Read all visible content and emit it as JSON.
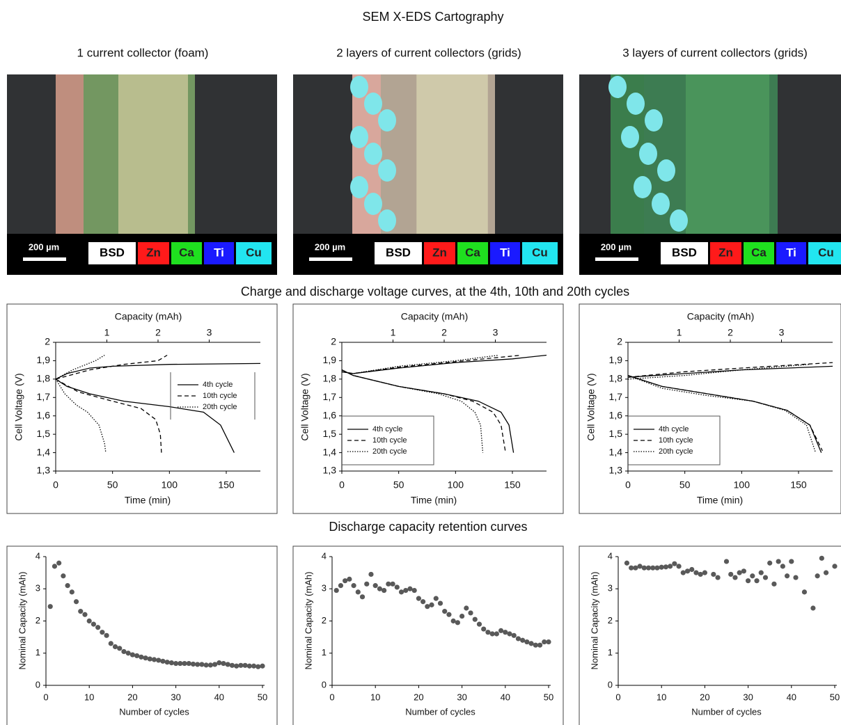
{
  "title": "SEM X-EDS Cartography",
  "sem_panels": [
    {
      "title": "1 current collector (foam)",
      "scale_bar": "200 µm",
      "channels": [
        "BSD",
        "Zn",
        "Ca",
        "Ti",
        "Cu"
      ]
    },
    {
      "title": "2  layers of current collectors (grids)",
      "scale_bar": "200 µm",
      "channels": [
        "BSD",
        "Zn",
        "Ca",
        "Ti",
        "Cu"
      ]
    },
    {
      "title": "3 layers of current collectors (grids)",
      "scale_bar": "200 µm",
      "channels": [
        "BSD",
        "Zn",
        "Ca",
        "Ti",
        "Cu"
      ]
    }
  ],
  "voltage_section_title": "Charge and discharge voltage curves, at the 4th, 10th and 20th cycles",
  "retention_section_title": "Discharge capacity retention curves",
  "chart_data": [
    {
      "type": "line",
      "xlabel": "Time (min)",
      "ylabel": "Cell Voltage (V)",
      "x2label": "Capacity (mAh)",
      "xlim": [
        0,
        180
      ],
      "xticks": [
        0,
        50,
        100,
        150
      ],
      "x2lim": [
        0,
        4
      ],
      "x2ticks": [
        1,
        2,
        3
      ],
      "ylim": [
        1.3,
        2
      ],
      "yticks": [
        {
          "value": 1.3,
          "label": "1,3"
        },
        {
          "value": 1.4,
          "label": "1,4"
        },
        {
          "value": 1.5,
          "label": "1,5"
        },
        {
          "value": 1.6,
          "label": "1,6"
        },
        {
          "value": 1.7,
          "label": "1,7"
        },
        {
          "value": 1.8,
          "label": "1,8"
        },
        {
          "value": 1.9,
          "label": "1,9"
        },
        2
      ],
      "legend": "right",
      "series": [
        {
          "name": "4th cycle",
          "color": "#000000",
          "dash": "solid",
          "charge": {
            "x": [
              0,
              10,
              30,
              50,
              100,
              180
            ],
            "values": [
              1.8,
              1.83,
              1.86,
              1.87,
              1.88,
              1.885
            ]
          },
          "discharge": {
            "x": [
              0,
              10,
              30,
              60,
              100,
              130,
              145,
              157
            ],
            "values": [
              1.8,
              1.76,
              1.72,
              1.68,
              1.65,
              1.62,
              1.55,
              1.4
            ]
          }
        },
        {
          "name": "10th cycle",
          "color": "#000000",
          "dash": "dashed",
          "charge": {
            "x": [
              0,
              30,
              60,
              90,
              98
            ],
            "values": [
              1.8,
              1.85,
              1.88,
              1.9,
              1.93
            ]
          },
          "discharge": {
            "x": [
              0,
              20,
              50,
              75,
              88,
              92,
              93
            ],
            "values": [
              1.8,
              1.73,
              1.68,
              1.64,
              1.58,
              1.5,
              1.4
            ]
          }
        },
        {
          "name": "20th cycle",
          "color": "#000000",
          "dash": "dotted",
          "charge": {
            "x": [
              0,
              15,
              35,
              43
            ],
            "values": [
              1.8,
              1.85,
              1.9,
              1.93
            ]
          },
          "discharge": {
            "x": [
              0,
              8,
              18,
              28,
              38,
              43,
              44
            ],
            "values": [
              1.8,
              1.72,
              1.66,
              1.62,
              1.55,
              1.45,
              1.4
            ]
          }
        }
      ]
    },
    {
      "type": "line",
      "xlabel": "Time (min)",
      "ylabel": "Cell Voltage (V)",
      "x2label": "Capacity (mAh)",
      "xlim": [
        0,
        180
      ],
      "xticks": [
        0,
        50,
        100,
        150
      ],
      "x2lim": [
        0,
        4
      ],
      "x2ticks": [
        1,
        2,
        3
      ],
      "ylim": [
        1.3,
        2
      ],
      "yticks": [
        {
          "value": 1.3,
          "label": "1,3"
        },
        {
          "value": 1.4,
          "label": "1,4"
        },
        {
          "value": 1.5,
          "label": "1,5"
        },
        {
          "value": 1.6,
          "label": "1,6"
        },
        {
          "value": 1.7,
          "label": "1,7"
        },
        {
          "value": 1.8,
          "label": "1,8"
        },
        {
          "value": 1.9,
          "label": "1,9"
        },
        2
      ],
      "legend": "lower left",
      "series": [
        {
          "name": "4th cycle",
          "color": "#000000",
          "dash": "solid",
          "charge": {
            "x": [
              0,
              10,
              50,
              100,
              150,
              180
            ],
            "values": [
              1.84,
              1.83,
              1.86,
              1.89,
              1.91,
              1.93
            ]
          },
          "discharge": {
            "x": [
              0,
              10,
              50,
              90,
              120,
              140,
              147,
              151
            ],
            "values": [
              1.85,
              1.82,
              1.76,
              1.72,
              1.68,
              1.62,
              1.55,
              1.4
            ]
          }
        },
        {
          "name": "10th cycle",
          "color": "#000000",
          "dash": "dashed",
          "charge": {
            "x": [
              0,
              10,
              50,
              100,
              158
            ],
            "values": [
              1.84,
              1.83,
              1.865,
              1.895,
              1.93
            ]
          },
          "discharge": {
            "x": [
              0,
              10,
              50,
              90,
              115,
              133,
              140,
              144
            ],
            "values": [
              1.85,
              1.82,
              1.76,
              1.72,
              1.68,
              1.62,
              1.55,
              1.4
            ]
          }
        },
        {
          "name": "20th cycle",
          "color": "#000000",
          "dash": "dotted",
          "charge": {
            "x": [
              0,
              10,
              50,
              100,
              138
            ],
            "values": [
              1.84,
              1.83,
              1.87,
              1.9,
              1.93
            ]
          },
          "discharge": {
            "x": [
              0,
              10,
              50,
              85,
              105,
              117,
              122,
              124
            ],
            "values": [
              1.85,
              1.82,
              1.76,
              1.72,
              1.68,
              1.62,
              1.55,
              1.4
            ]
          }
        }
      ]
    },
    {
      "type": "line",
      "xlabel": "Time (min)",
      "ylabel": "Cell Voltage (V)",
      "x2label": "Capacity (mAh)",
      "xlim": [
        0,
        180
      ],
      "xticks": [
        0,
        50,
        100,
        150
      ],
      "x2lim": [
        0,
        4
      ],
      "x2ticks": [
        1,
        2,
        3
      ],
      "ylim": [
        1.3,
        2
      ],
      "yticks": [
        {
          "value": 1.3,
          "label": "1,3"
        },
        {
          "value": 1.4,
          "label": "1,4"
        },
        {
          "value": 1.5,
          "label": "1,5"
        },
        {
          "value": 1.6,
          "label": "1,6"
        },
        {
          "value": 1.7,
          "label": "1,7"
        },
        {
          "value": 1.8,
          "label": "1,8"
        },
        {
          "value": 1.9,
          "label": "1,9"
        },
        2
      ],
      "legend": "lower left",
      "series": [
        {
          "name": "4th cycle",
          "color": "#000000",
          "dash": "solid",
          "charge": {
            "x": [
              0,
              50,
              100,
              180
            ],
            "values": [
              1.81,
              1.83,
              1.85,
              1.87
            ]
          },
          "discharge": {
            "x": [
              0,
              30,
              70,
              110,
              140,
              160,
              170
            ],
            "values": [
              1.82,
              1.76,
              1.72,
              1.68,
              1.63,
              1.55,
              1.4
            ]
          }
        },
        {
          "name": "10th cycle",
          "color": "#000000",
          "dash": "dashed",
          "charge": {
            "x": [
              0,
              50,
              100,
              180
            ],
            "values": [
              1.81,
              1.84,
              1.86,
              1.89
            ]
          },
          "discharge": {
            "x": [
              0,
              30,
              70,
              110,
              140,
              160,
              171
            ],
            "values": [
              1.82,
              1.76,
              1.72,
              1.68,
              1.63,
              1.55,
              1.41
            ]
          }
        },
        {
          "name": "20th cycle",
          "color": "#000000",
          "dash": "dotted",
          "charge": {
            "x": [
              0,
              50,
              100,
              160
            ],
            "values": [
              1.8,
              1.82,
              1.85,
              1.88
            ]
          },
          "discharge": {
            "x": [
              0,
              30,
              70,
              110,
              138,
              157,
              165
            ],
            "values": [
              1.82,
              1.75,
              1.71,
              1.68,
              1.63,
              1.55,
              1.4
            ]
          }
        }
      ]
    },
    {
      "type": "scatter",
      "xlabel": "Number of cycles",
      "ylabel": "Nominal Capacity (mAh)",
      "color": "#595959",
      "xlim": [
        0,
        50
      ],
      "xticks": [
        0,
        10,
        20,
        30,
        40,
        50
      ],
      "ylim": [
        0,
        4
      ],
      "yticks": [
        0,
        1,
        2,
        3,
        4
      ],
      "x": [
        1,
        2,
        3,
        4,
        5,
        6,
        7,
        8,
        9,
        10,
        11,
        12,
        13,
        14,
        15,
        16,
        17,
        18,
        19,
        20,
        21,
        22,
        23,
        24,
        25,
        26,
        27,
        28,
        29,
        30,
        31,
        32,
        33,
        34,
        35,
        36,
        37,
        38,
        39,
        40,
        41,
        42,
        43,
        44,
        45,
        46,
        47,
        48,
        49,
        50
      ],
      "values": [
        2.45,
        3.7,
        3.8,
        3.4,
        3.1,
        2.9,
        2.6,
        2.3,
        2.2,
        2.0,
        1.9,
        1.8,
        1.65,
        1.55,
        1.3,
        1.2,
        1.15,
        1.05,
        1.0,
        0.95,
        0.92,
        0.88,
        0.85,
        0.82,
        0.8,
        0.78,
        0.75,
        0.72,
        0.7,
        0.68,
        0.68,
        0.68,
        0.68,
        0.66,
        0.65,
        0.65,
        0.63,
        0.63,
        0.65,
        0.7,
        0.68,
        0.65,
        0.62,
        0.6,
        0.62,
        0.62,
        0.6,
        0.6,
        0.58,
        0.6
      ]
    },
    {
      "type": "scatter",
      "xlabel": "Number of cycles",
      "ylabel": "Nominal Capacity (mAh)",
      "color": "#595959",
      "xlim": [
        0,
        50
      ],
      "xticks": [
        0,
        10,
        20,
        30,
        40,
        50
      ],
      "ylim": [
        0,
        4
      ],
      "yticks": [
        0,
        1,
        2,
        3,
        4
      ],
      "x": [
        1,
        2,
        3,
        4,
        5,
        6,
        7,
        8,
        9,
        10,
        11,
        12,
        13,
        14,
        15,
        16,
        17,
        18,
        19,
        20,
        21,
        22,
        23,
        24,
        25,
        26,
        27,
        28,
        29,
        30,
        31,
        32,
        33,
        34,
        35,
        36,
        37,
        38,
        39,
        40,
        41,
        42,
        43,
        44,
        45,
        46,
        47,
        48,
        49,
        50
      ],
      "values": [
        2.95,
        3.1,
        3.25,
        3.3,
        3.1,
        2.9,
        2.75,
        3.15,
        3.45,
        3.1,
        3.0,
        2.95,
        3.15,
        3.15,
        3.05,
        2.9,
        2.95,
        3.0,
        2.95,
        2.7,
        2.6,
        2.45,
        2.5,
        2.7,
        2.55,
        2.3,
        2.2,
        2.0,
        1.95,
        2.15,
        2.4,
        2.25,
        2.05,
        1.9,
        1.75,
        1.65,
        1.6,
        1.6,
        1.7,
        1.65,
        1.6,
        1.55,
        1.45,
        1.4,
        1.35,
        1.3,
        1.25,
        1.25,
        1.35,
        1.35
      ]
    },
    {
      "type": "scatter",
      "xlabel": "Number of cycles",
      "ylabel": "Nominal Capacity (mAh)",
      "color": "#595959",
      "xlim": [
        0,
        50
      ],
      "xticks": [
        0,
        10,
        20,
        30,
        40,
        50
      ],
      "ylim": [
        0,
        4
      ],
      "yticks": [
        0,
        1,
        2,
        3,
        4
      ],
      "x": [
        2,
        3,
        4,
        5,
        6,
        7,
        8,
        9,
        10,
        11,
        12,
        13,
        14,
        15,
        16,
        17,
        18,
        19,
        20,
        22,
        23,
        25,
        26,
        27,
        28,
        29,
        30,
        31,
        32,
        33,
        34,
        35,
        36,
        37,
        38,
        39,
        40,
        41,
        43,
        45,
        46,
        47,
        48,
        50
      ],
      "values": [
        3.8,
        3.65,
        3.65,
        3.7,
        3.65,
        3.65,
        3.65,
        3.65,
        3.67,
        3.68,
        3.7,
        3.78,
        3.7,
        3.5,
        3.55,
        3.6,
        3.5,
        3.45,
        3.5,
        3.45,
        3.35,
        3.85,
        3.45,
        3.35,
        3.5,
        3.55,
        3.25,
        3.4,
        3.25,
        3.5,
        3.35,
        3.8,
        3.15,
        3.85,
        3.7,
        3.4,
        3.85,
        3.35,
        2.9,
        2.4,
        3.4,
        3.95,
        3.5,
        3.7
      ]
    }
  ]
}
